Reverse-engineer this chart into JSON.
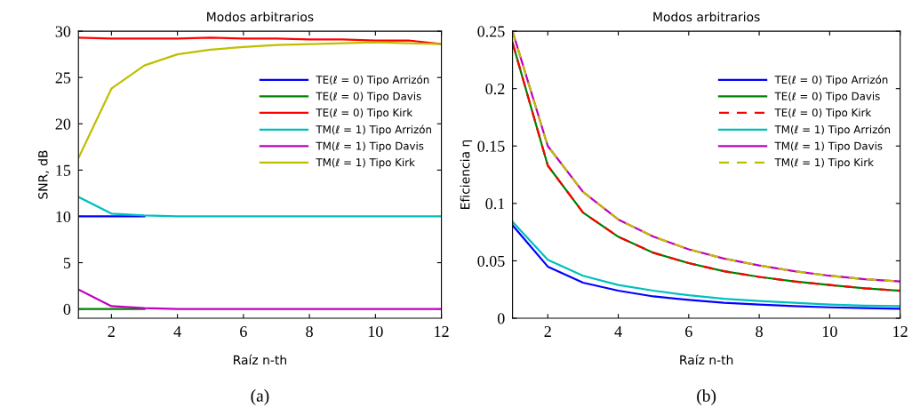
{
  "chart_data": [
    {
      "type": "line",
      "title": "Modos arbitrarios",
      "xlabel": "Raíz n-th",
      "ylabel": "SNR, dB",
      "annotations": [
        "(a)"
      ],
      "x": [
        1,
        2,
        3,
        4,
        5,
        6,
        7,
        8,
        9,
        10,
        11,
        12
      ],
      "xlim": [
        1,
        12
      ],
      "xticks": [
        2,
        4,
        6,
        8,
        10,
        12
      ],
      "ylim": [
        -1,
        30
      ],
      "yticks": [
        0,
        5,
        10,
        15,
        20,
        25,
        30
      ],
      "grid": false,
      "legend": "top right",
      "line_style": "solid",
      "series": [
        {
          "name": "TE(ℓ = 0) Tipo Arrizón",
          "color": "#0000ff",
          "values": [
            10,
            10,
            10,
            null,
            null,
            null,
            null,
            null,
            null,
            null,
            null,
            null
          ]
        },
        {
          "name": "TE(ℓ = 0) Tipo Davis",
          "color": "#008000",
          "values": [
            0,
            0,
            0,
            null,
            null,
            null,
            null,
            null,
            null,
            null,
            null,
            null
          ]
        },
        {
          "name": "TE(ℓ = 0) Tipo Kirk",
          "color": "#ff0000",
          "values": [
            29.3,
            29.2,
            29.2,
            29.2,
            29.3,
            29.2,
            29.2,
            29.1,
            29.1,
            29.0,
            29.0,
            28.6
          ]
        },
        {
          "name": "TM(ℓ = 1) Tipo Arrizón",
          "color": "#00bfbf",
          "values": [
            12.1,
            10.3,
            10.1,
            10.0,
            10,
            10,
            10,
            10,
            10,
            10,
            10,
            10
          ]
        },
        {
          "name": "TM(ℓ = 1) Tipo Davis",
          "color": "#bf00bf",
          "values": [
            2.1,
            0.3,
            0.1,
            0.0,
            0,
            0,
            0,
            0,
            0,
            0,
            0,
            0
          ]
        },
        {
          "name": "TM(ℓ = 1) Tipo Kirk",
          "color": "#bfbf00",
          "values": [
            16.3,
            23.8,
            26.3,
            27.5,
            28.0,
            28.3,
            28.5,
            28.6,
            28.7,
            28.8,
            28.7,
            28.6
          ]
        }
      ]
    },
    {
      "type": "line",
      "title": "Modos arbitrarios",
      "xlabel": "Raíz n-th",
      "ylabel": "Eficiencia η",
      "annotations": [
        "(b)"
      ],
      "x": [
        1,
        2,
        3,
        4,
        5,
        6,
        7,
        8,
        9,
        10,
        11,
        12
      ],
      "xlim": [
        1,
        12
      ],
      "xticks": [
        2,
        4,
        6,
        8,
        10,
        12
      ],
      "ylim": [
        0,
        0.25
      ],
      "yticks": [
        0,
        0.05,
        0.1,
        0.15,
        0.2,
        0.25
      ],
      "grid": false,
      "legend": "top right",
      "line_style": "solid",
      "series": [
        {
          "name": "TE(ℓ = 0) Tipo Arrizón",
          "color": "#0000ff",
          "values": [
            0.081,
            0.045,
            0.031,
            0.024,
            0.019,
            0.016,
            0.0135,
            0.012,
            0.0105,
            0.0095,
            0.0088,
            0.0082
          ]
        },
        {
          "name": "TE(ℓ = 0) Tipo Davis",
          "color": "#008000",
          "values": [
            0.24,
            0.133,
            0.092,
            0.071,
            0.057,
            0.048,
            0.041,
            0.036,
            0.032,
            0.029,
            0.026,
            0.024
          ]
        },
        {
          "name": "TE(ℓ = 0) Tipo Kirk",
          "color": "#ff0000",
          "line_style": "dashed",
          "values": [
            0.24,
            0.133,
            0.092,
            0.071,
            0.057,
            0.048,
            0.041,
            0.036,
            0.032,
            0.029,
            0.026,
            0.024
          ]
        },
        {
          "name": "TM(ℓ = 1) Tipo Arrizón",
          "color": "#00bfbf",
          "values": [
            0.084,
            0.051,
            0.037,
            0.029,
            0.024,
            0.02,
            0.017,
            0.015,
            0.0135,
            0.012,
            0.011,
            0.0105
          ]
        },
        {
          "name": "TM(ℓ = 1) Tipo Davis",
          "color": "#bf00bf",
          "values": [
            0.25,
            0.15,
            0.11,
            0.086,
            0.071,
            0.06,
            0.052,
            0.046,
            0.041,
            0.037,
            0.034,
            0.032
          ]
        },
        {
          "name": "TM(ℓ = 1) Tipo Kirk",
          "color": "#bfbf00",
          "line_style": "dashed",
          "values": [
            0.25,
            0.15,
            0.11,
            0.086,
            0.071,
            0.06,
            0.052,
            0.046,
            0.041,
            0.037,
            0.034,
            0.032
          ]
        }
      ]
    }
  ]
}
